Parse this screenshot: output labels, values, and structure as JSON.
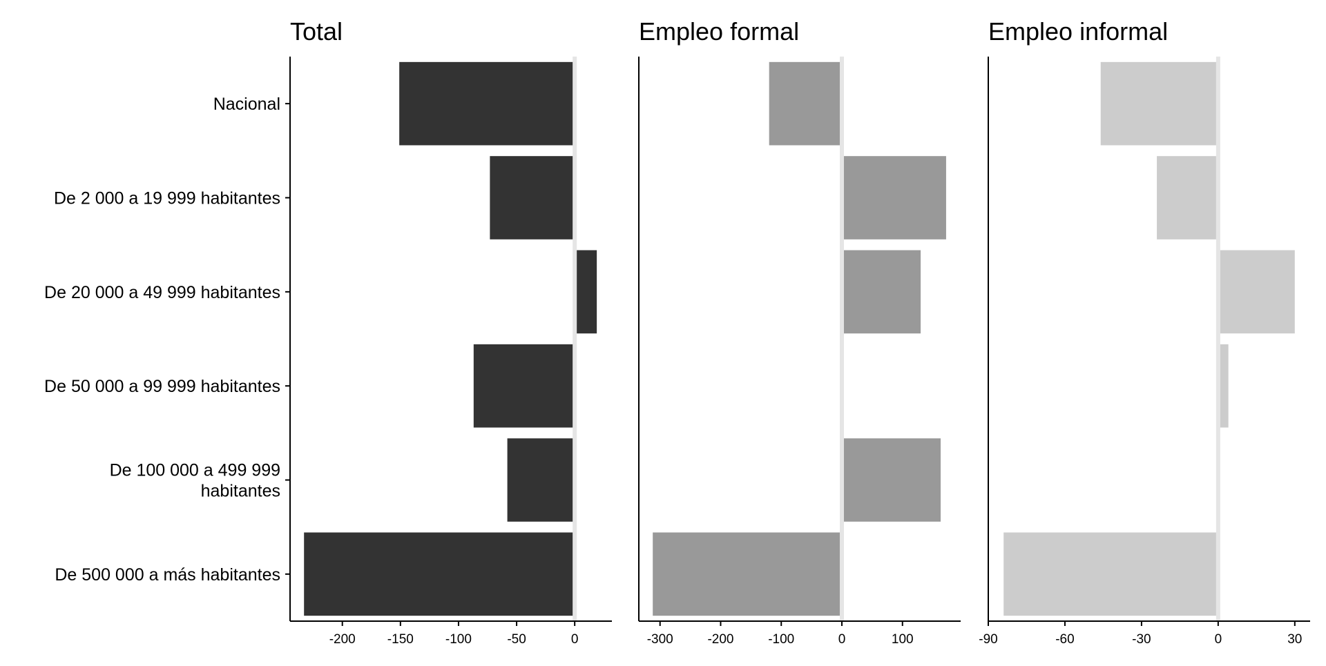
{
  "chart_data": {
    "type": "bar",
    "orientation": "horizontal",
    "categories": [
      "Nacional",
      "De 2 000 a 19 999 habitantes",
      "De 20 000 a 49 999 habitantes",
      "De 50 000 a 99 999 habitantes",
      "De 100 000 a 499 999 habitantes",
      "De 500 000 a más habitantes"
    ],
    "category_label_lines": [
      [
        "Nacional"
      ],
      [
        "De 2 000 a 19 999 habitantes"
      ],
      [
        "De 20 000 a 49 999 habitantes"
      ],
      [
        "De 50 000 a 99 999 habitantes"
      ],
      [
        "De 100 000 a 499 999",
        "habitantes"
      ],
      [
        "De 500 000 a más habitantes"
      ]
    ],
    "grid": false,
    "legend": "none",
    "panels": [
      {
        "title": "Total",
        "color": "#333333",
        "xlim": [
          -245,
          32
        ],
        "ticks": [
          -200,
          -150,
          -100,
          -50,
          0
        ],
        "tick_labels": [
          "-200",
          "-150",
          "-100",
          "-50",
          "0"
        ],
        "values": [
          -151,
          -73,
          19,
          -87,
          -58,
          -233
        ]
      },
      {
        "title": "Empleo formal",
        "color": "#999999",
        "xlim": [
          -335,
          196
        ],
        "ticks": [
          -300,
          -200,
          -100,
          0,
          100
        ],
        "tick_labels": [
          "-300",
          "-200",
          "-100",
          "0",
          "100"
        ],
        "values": [
          -120,
          172,
          130,
          -3,
          163,
          -312
        ]
      },
      {
        "title": "Empleo informal",
        "color": "#cccccc",
        "xlim": [
          -90,
          36
        ],
        "ticks": [
          -90,
          -60,
          -30,
          0,
          30
        ],
        "tick_labels": [
          "-90",
          "-60",
          "-30",
          "0",
          "30"
        ],
        "values": [
          -46,
          -24,
          30,
          4,
          0,
          -84
        ]
      }
    ],
    "zero_line_color": "#e5e5e5"
  }
}
